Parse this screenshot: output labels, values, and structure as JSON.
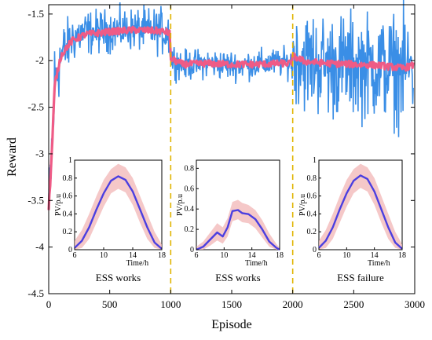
{
  "chart_data": {
    "type": "line",
    "xlabel": "Episode",
    "ylabel": "Reward",
    "xlim": [
      0,
      3000
    ],
    "ylim": [
      -4.5,
      -1.4
    ],
    "xticks": [
      0,
      500,
      1000,
      1500,
      2000,
      2500,
      3000
    ],
    "yticks": [
      -1.5,
      -2,
      -2.5,
      -3,
      -3.5,
      -4,
      -4.5
    ],
    "grid": false,
    "colors": {
      "raw": "#3a8ee6",
      "smoothed": "#ef5b86",
      "divider": "#e0b400",
      "inset_curve": "#4b3fe0",
      "inset_band": "#f2b6b6"
    },
    "series": [
      {
        "role": "raw",
        "x": [
          0,
          25,
          50,
          100,
          150,
          200,
          300,
          500,
          700,
          900,
          990,
          1000,
          1100,
          1300,
          1500,
          1700,
          1900,
          1990,
          2000,
          2100,
          2300,
          2500,
          2700,
          2900,
          2990
        ],
        "mean": [
          -3.6,
          -3.0,
          -2.2,
          -1.95,
          -1.85,
          -1.75,
          -1.7,
          -1.68,
          -1.66,
          -1.68,
          -1.7,
          -1.97,
          -2.05,
          -2.03,
          -2.05,
          -2.04,
          -2.02,
          -2.03,
          -1.95,
          -2.0,
          -2.05,
          -2.05,
          -2.07,
          -2.1,
          -2.05
        ],
        "spread": [
          0.3,
          0.45,
          0.4,
          0.25,
          0.22,
          0.2,
          0.18,
          0.17,
          0.17,
          0.18,
          0.2,
          0.14,
          0.12,
          0.12,
          0.12,
          0.12,
          0.12,
          0.12,
          0.35,
          0.4,
          0.42,
          0.42,
          0.42,
          0.45,
          0.42
        ]
      },
      {
        "role": "smoothed",
        "x": [
          0,
          25,
          50,
          100,
          150,
          200,
          300,
          500,
          700,
          900,
          990,
          1000,
          1100,
          1300,
          1500,
          1700,
          1900,
          1990,
          2000,
          2100,
          2300,
          2500,
          2700,
          2900,
          2990
        ],
        "y": [
          -3.6,
          -3.0,
          -2.25,
          -1.95,
          -1.85,
          -1.78,
          -1.72,
          -1.69,
          -1.67,
          -1.68,
          -1.7,
          -1.98,
          -2.04,
          -2.03,
          -2.04,
          -2.04,
          -2.03,
          -2.03,
          -1.95,
          -2.01,
          -2.03,
          -2.04,
          -2.05,
          -2.08,
          -2.05
        ]
      }
    ],
    "dividers_x": [
      1000,
      2000
    ],
    "insets": [
      {
        "caption": "ESS works",
        "xlabel": "Time/h",
        "ylabel": "PV/p.u",
        "xticks": [
          "6",
          "10",
          "14",
          "18"
        ],
        "yticks": [
          "0",
          "0.2",
          "0.4",
          "0.6",
          "0.8",
          "1"
        ],
        "x": [
          6,
          7,
          8,
          9,
          10,
          11,
          12,
          13,
          14,
          15,
          16,
          17,
          18
        ],
        "y": [
          0.02,
          0.1,
          0.25,
          0.45,
          0.63,
          0.77,
          0.82,
          0.78,
          0.65,
          0.45,
          0.25,
          0.08,
          0.01
        ],
        "band_low": [
          0.0,
          0.02,
          0.12,
          0.3,
          0.48,
          0.63,
          0.68,
          0.64,
          0.5,
          0.3,
          0.12,
          0.02,
          0.0
        ],
        "band_high": [
          0.1,
          0.22,
          0.4,
          0.6,
          0.78,
          0.9,
          0.96,
          0.92,
          0.8,
          0.6,
          0.4,
          0.2,
          0.06
        ]
      },
      {
        "caption": "ESS works",
        "xlabel": "Time/h",
        "ylabel": "PV/p.u",
        "xticks": [
          "6",
          "10",
          "14",
          "18"
        ],
        "yticks": [
          "0",
          "0.2",
          "0.4",
          "0.6",
          "0.8"
        ],
        "x": [
          6,
          7,
          8,
          9,
          9.8,
          10.5,
          11.2,
          12,
          12.6,
          13.5,
          14.5,
          15.5,
          16.5,
          17.5,
          18
        ],
        "y": [
          0.0,
          0.03,
          0.1,
          0.17,
          0.13,
          0.22,
          0.38,
          0.39,
          0.36,
          0.35,
          0.3,
          0.2,
          0.08,
          0.02,
          0.0
        ],
        "band_low": [
          0.0,
          0.0,
          0.04,
          0.09,
          0.06,
          0.13,
          0.28,
          0.3,
          0.27,
          0.26,
          0.21,
          0.12,
          0.03,
          0.0,
          0.0
        ],
        "band_high": [
          0.03,
          0.08,
          0.17,
          0.26,
          0.22,
          0.31,
          0.47,
          0.49,
          0.46,
          0.44,
          0.39,
          0.29,
          0.16,
          0.06,
          0.02
        ]
      },
      {
        "caption": "ESS failure",
        "xlabel": "Time/h",
        "ylabel": "PV/p.u",
        "xticks": [
          "6",
          "10",
          "14",
          "18"
        ],
        "yticks": [
          "0",
          "0.2",
          "0.4",
          "0.6",
          "0.8",
          "1"
        ],
        "x": [
          6,
          7,
          8,
          9,
          10,
          11,
          12,
          13,
          14,
          15,
          16,
          17,
          18
        ],
        "y": [
          0.02,
          0.1,
          0.25,
          0.45,
          0.63,
          0.77,
          0.83,
          0.79,
          0.65,
          0.45,
          0.25,
          0.08,
          0.01
        ],
        "band_low": [
          0.0,
          0.02,
          0.12,
          0.3,
          0.48,
          0.63,
          0.69,
          0.65,
          0.5,
          0.3,
          0.12,
          0.02,
          0.0
        ],
        "band_high": [
          0.1,
          0.22,
          0.4,
          0.6,
          0.78,
          0.9,
          0.96,
          0.92,
          0.8,
          0.6,
          0.4,
          0.2,
          0.06
        ]
      }
    ]
  }
}
